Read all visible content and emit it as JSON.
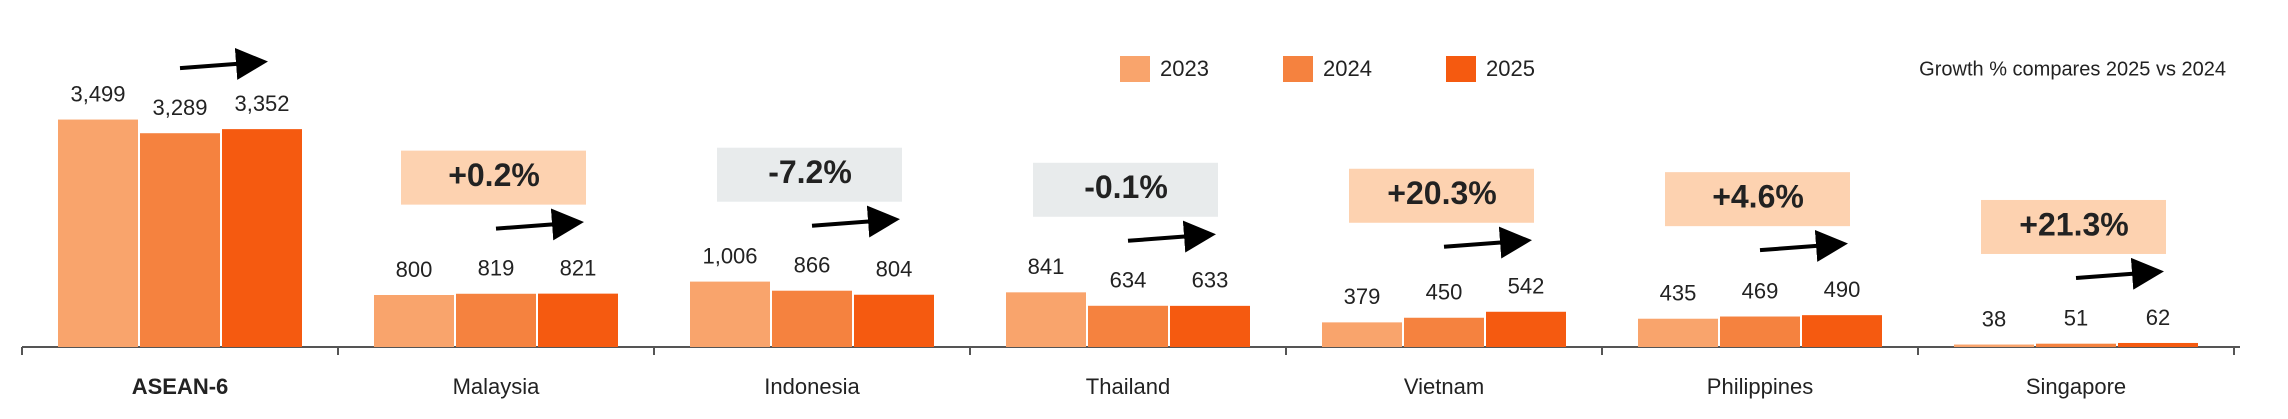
{
  "chart_data": {
    "type": "bar",
    "note": "Growth % compares 2025 vs 2024",
    "categories": [
      "ASEAN-6",
      "Malaysia",
      "Indonesia",
      "Thailand",
      "Vietnam",
      "Philippines",
      "Singapore"
    ],
    "series": [
      {
        "name": "2023",
        "color": "#f9a46c",
        "values": [
          3499,
          800,
          1006,
          841,
          379,
          435,
          38
        ],
        "value_labels": [
          "3,499",
          "800",
          "1,006",
          "841",
          "379",
          "435",
          "38"
        ]
      },
      {
        "name": "2024",
        "color": "#f5823f",
        "values": [
          3289,
          819,
          866,
          634,
          450,
          469,
          51
        ],
        "value_labels": [
          "3,289",
          "819",
          "866",
          "634",
          "450",
          "469",
          "51"
        ]
      },
      {
        "name": "2025",
        "color": "#f55a10",
        "values": [
          3352,
          821,
          804,
          633,
          542,
          490,
          62
        ],
        "value_labels": [
          "3,352",
          "821",
          "804",
          "633",
          "542",
          "490",
          "62"
        ]
      }
    ],
    "badges": [
      null,
      {
        "text": "+0.2%",
        "color": "#fdd2b0"
      },
      {
        "text": "-7.2%",
        "color": "#e8ebec"
      },
      {
        "text": "-0.1%",
        "color": "#e8ebec"
      },
      {
        "text": "+20.3%",
        "color": "#fdd2b0"
      },
      {
        "text": "+4.6%",
        "color": "#fdd2b0"
      },
      {
        "text": "+21.3%",
        "color": "#fdd2b0"
      }
    ]
  }
}
